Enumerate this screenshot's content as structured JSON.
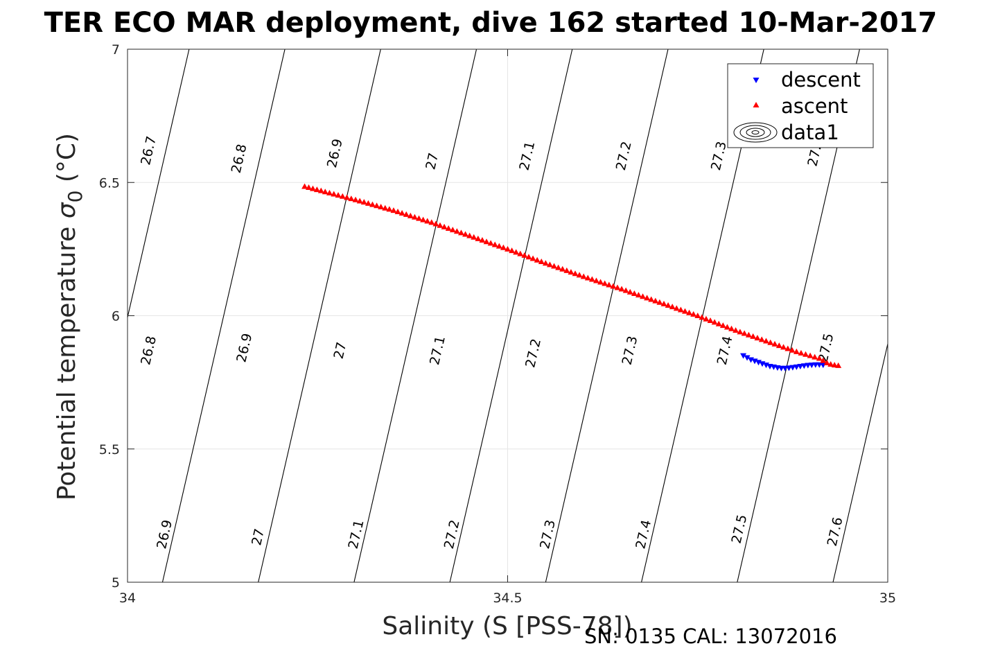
{
  "chart_data": {
    "type": "scatter",
    "title": "TER ECO MAR deployment, dive 162 started 10-Mar-2017",
    "xlabel": "Salinity (S [PSS-78])",
    "ylabel_prefix": "Potential temperature ",
    "ylabel_symbol": "σ",
    "ylabel_sub": "0",
    "ylabel_suffix": " (°C)",
    "xlim": [
      34,
      35
    ],
    "ylim": [
      5,
      7
    ],
    "xticks": [
      "34",
      "34.5",
      "35"
    ],
    "yticks": [
      "5",
      "5.5",
      "6",
      "6.5",
      "7"
    ],
    "grid": true,
    "legend_position": "top-right",
    "legend": [
      "descent",
      "ascent",
      "data1"
    ],
    "series": [
      {
        "name": "descent",
        "color": "#0000ff",
        "marker": "triangle-down",
        "points": [
          [
            34.81,
            5.85
          ],
          [
            34.82,
            5.835
          ],
          [
            34.825,
            5.83
          ],
          [
            34.83,
            5.825
          ],
          [
            34.835,
            5.82
          ],
          [
            34.84,
            5.815
          ],
          [
            34.845,
            5.81
          ],
          [
            34.85,
            5.808
          ],
          [
            34.855,
            5.805
          ],
          [
            34.86,
            5.803
          ],
          [
            34.865,
            5.803
          ],
          [
            34.87,
            5.804
          ],
          [
            34.875,
            5.806
          ],
          [
            34.88,
            5.808
          ],
          [
            34.885,
            5.81
          ],
          [
            34.89,
            5.812
          ],
          [
            34.895,
            5.814
          ],
          [
            34.9,
            5.815
          ],
          [
            34.905,
            5.816
          ],
          [
            34.91,
            5.816
          ],
          [
            34.915,
            5.815
          ]
        ]
      },
      {
        "name": "ascent",
        "color": "#ff0000",
        "marker": "triangle-up",
        "points": [
          [
            34.233,
            6.485
          ],
          [
            34.26,
            6.465
          ],
          [
            34.3,
            6.435
          ],
          [
            34.35,
            6.395
          ],
          [
            34.4,
            6.35
          ],
          [
            34.45,
            6.3
          ],
          [
            34.5,
            6.25
          ],
          [
            34.55,
            6.197
          ],
          [
            34.6,
            6.147
          ],
          [
            34.65,
            6.1
          ],
          [
            34.7,
            6.05
          ],
          [
            34.75,
            6.0
          ],
          [
            34.8,
            5.945
          ],
          [
            34.84,
            5.905
          ],
          [
            34.88,
            5.865
          ],
          [
            34.91,
            5.84
          ],
          [
            34.92,
            5.823
          ],
          [
            34.925,
            5.818
          ],
          [
            34.93,
            5.815
          ],
          [
            34.935,
            5.813
          ]
        ]
      }
    ],
    "contours": [
      {
        "value": 26.7,
        "s_at_t7": 34.081
      },
      {
        "value": 26.8,
        "s_at_t7": 34.207
      },
      {
        "value": 26.9,
        "s_at_t7": 34.333
      },
      {
        "value": 27,
        "s_at_t7": 34.459
      },
      {
        "value": 27.1,
        "s_at_t7": 34.585
      },
      {
        "value": 27.2,
        "s_at_t7": 34.711
      },
      {
        "value": 27.3,
        "s_at_t7": 34.837
      },
      {
        "value": 27.4,
        "s_at_t7": 34.963
      },
      {
        "value": 27.5,
        "s_at_t7": 35.089
      },
      {
        "value": 27.6,
        "s_at_t7": 35.215
      }
    ],
    "contour_labels": [
      {
        "text": "26.7",
        "s": 34.027,
        "t": 6.62
      },
      {
        "text": "26.8",
        "s": 34.146,
        "t": 6.59
      },
      {
        "text": "26.9",
        "s": 34.272,
        "t": 6.61
      },
      {
        "text": "27",
        "s": 34.4,
        "t": 6.58
      },
      {
        "text": "27.1",
        "s": 34.525,
        "t": 6.6
      },
      {
        "text": "27.2",
        "s": 34.652,
        "t": 6.6
      },
      {
        "text": "27.3",
        "s": 34.777,
        "t": 6.6
      },
      {
        "text": "27.",
        "s": 34.903,
        "t": 6.6
      },
      {
        "text": "26.8",
        "s": 34.027,
        "t": 5.87
      },
      {
        "text": "26.9",
        "s": 34.153,
        "t": 5.88
      },
      {
        "text": "27",
        "s": 34.279,
        "t": 5.87
      },
      {
        "text": "27.1",
        "s": 34.407,
        "t": 5.87
      },
      {
        "text": "27.2",
        "s": 34.533,
        "t": 5.86
      },
      {
        "text": "27.3",
        "s": 34.66,
        "t": 5.87
      },
      {
        "text": "27.4",
        "s": 34.785,
        "t": 5.87
      },
      {
        "text": "27.5",
        "s": 34.918,
        "t": 5.88
      },
      {
        "text": "26.9",
        "s": 34.048,
        "t": 5.18
      },
      {
        "text": "27",
        "s": 34.171,
        "t": 5.17
      },
      {
        "text": "27.1",
        "s": 34.3,
        "t": 5.18
      },
      {
        "text": "27.2",
        "s": 34.426,
        "t": 5.18
      },
      {
        "text": "27.3",
        "s": 34.552,
        "t": 5.18
      },
      {
        "text": "27.4",
        "s": 34.678,
        "t": 5.18
      },
      {
        "text": "27.5",
        "s": 34.804,
        "t": 5.2
      },
      {
        "text": "27.6",
        "s": 34.93,
        "t": 5.19
      }
    ]
  },
  "footer": {
    "serial": "SN: 0135  CAL: 13072016"
  }
}
